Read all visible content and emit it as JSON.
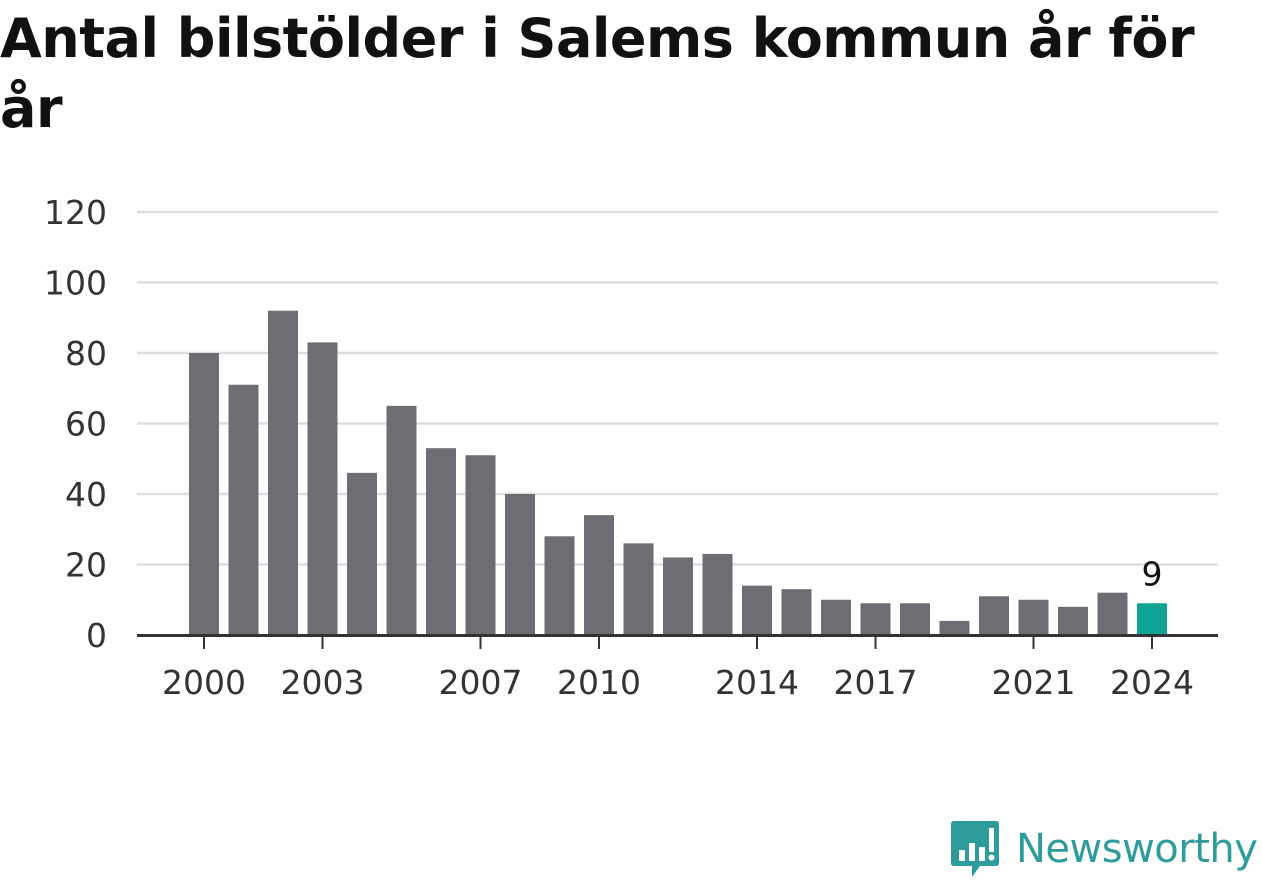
{
  "chart_data": {
    "type": "bar",
    "title": "Antal bilstölder i Salems kommun år för år",
    "xlabel": "",
    "ylabel": "",
    "categories": [
      2000,
      2001,
      2002,
      2003,
      2004,
      2005,
      2006,
      2007,
      2008,
      2009,
      2010,
      2011,
      2012,
      2013,
      2014,
      2015,
      2016,
      2017,
      2018,
      2019,
      2020,
      2021,
      2022,
      2023,
      2024
    ],
    "values": [
      80,
      71,
      92,
      83,
      46,
      65,
      53,
      51,
      40,
      28,
      34,
      26,
      22,
      23,
      14,
      13,
      10,
      9,
      9,
      4,
      11,
      10,
      8,
      12,
      9
    ],
    "ylim": [
      0,
      120
    ],
    "yticks": [
      "0",
      "20",
      "40",
      "60",
      "80",
      "100",
      "120"
    ],
    "xticks": [
      "2000",
      "2003",
      "2007",
      "2010",
      "2014",
      "2017",
      "2021",
      "2024"
    ],
    "highlight": {
      "category": 2024,
      "label": "9"
    },
    "grid": true,
    "colors": {
      "bar": "#6e6d73",
      "highlight": "#0fa396",
      "grid": "#dedede",
      "axis": "#333333",
      "text": "#333333"
    }
  },
  "brand": {
    "name": "Newsworthy",
    "icon": "bar-chart-speech-bubble-icon"
  }
}
